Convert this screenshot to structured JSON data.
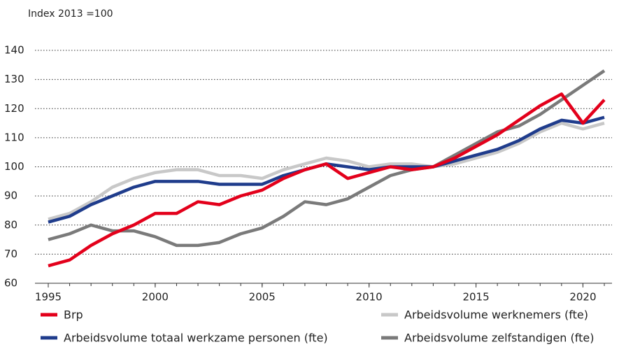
{
  "chart_data": {
    "type": "line",
    "y_axis_label": "Index 2013 =100",
    "x": [
      1995,
      1996,
      1997,
      1998,
      1999,
      2000,
      2001,
      2002,
      2003,
      2004,
      2005,
      2006,
      2007,
      2008,
      2009,
      2010,
      2011,
      2012,
      2013,
      2014,
      2015,
      2016,
      2017,
      2018,
      2019,
      2020,
      2021
    ],
    "xlim": [
      1995,
      2021
    ],
    "xticks": [
      1995,
      2000,
      2005,
      2010,
      2015,
      2020
    ],
    "ylim": [
      60,
      140
    ],
    "yticks": [
      60,
      70,
      80,
      90,
      100,
      110,
      120,
      130,
      140
    ],
    "grid": true,
    "series": [
      {
        "name": "Brp",
        "color": "#e3001b",
        "values": [
          66,
          68,
          73,
          77,
          80,
          84,
          84,
          88,
          87,
          90,
          92,
          96,
          99,
          101,
          96,
          98,
          100,
          99,
          100,
          103,
          107,
          111,
          116,
          121,
          125,
          115,
          123
        ]
      },
      {
        "name": "Arbeidsvolume werknemers (fte)",
        "color": "#c8c8c8",
        "values": [
          82,
          84,
          88,
          93,
          96,
          98,
          99,
          99,
          97,
          97,
          96,
          99,
          101,
          103,
          102,
          100,
          101,
          101,
          100,
          101,
          103,
          105,
          108,
          112,
          115,
          113,
          115
        ]
      },
      {
        "name": "Arbeidsvolume totaal werkzame personen (fte)",
        "color": "#1f3c8c",
        "values": [
          81,
          83,
          87,
          90,
          93,
          95,
          95,
          95,
          94,
          94,
          94,
          97,
          99,
          101,
          100,
          99,
          100,
          100,
          100,
          102,
          104,
          106,
          109,
          113,
          116,
          115,
          117
        ]
      },
      {
        "name": "Arbeidsvolume zelfstandigen (fte)",
        "color": "#7a7a7a",
        "values": [
          75,
          77,
          80,
          78,
          78,
          76,
          73,
          73,
          74,
          77,
          79,
          83,
          88,
          87,
          89,
          93,
          97,
          99,
          100,
          104,
          108,
          112,
          114,
          118,
          123,
          128,
          133
        ]
      }
    ]
  }
}
